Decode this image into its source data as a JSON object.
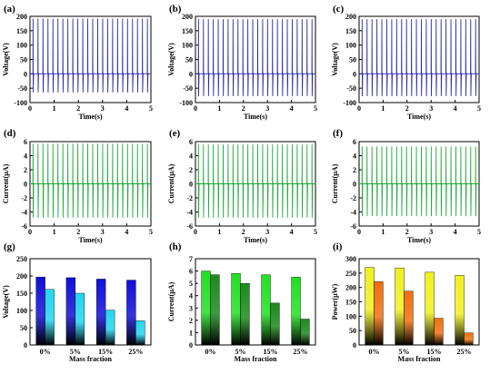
{
  "figure": {
    "panels": [
      "(a)",
      "(b)",
      "(c)",
      "(d)",
      "(e)",
      "(f)",
      "(g)",
      "(h)",
      "(i)"
    ]
  },
  "colors": {
    "voltage_trace": "#2a2aa8",
    "current_trace": "#1fa83a",
    "voltage_bar_a": "#1010d8",
    "voltage_bar_b": "#22d6ee",
    "current_bar_a": "#22e022",
    "current_bar_b": "#1c8a1c",
    "power_bar_a": "#f0f020",
    "power_bar_b": "#f07010"
  },
  "chart_data": [
    {
      "id": "a",
      "type": "line",
      "label": "(a)",
      "xlabel": "Time(s)",
      "ylabel": "Voltage(V)",
      "xlim": [
        0,
        5
      ],
      "ylim": [
        -100,
        200
      ],
      "xticks": [
        0,
        1,
        2,
        3,
        4,
        5
      ],
      "yticks": [
        -100,
        -50,
        0,
        50,
        100,
        150,
        200
      ],
      "signal": {
        "pulses": 24,
        "t_start": 0.12,
        "t_end": 4.85,
        "peak": 192,
        "trough": -65,
        "baseline": 0
      }
    },
    {
      "id": "b",
      "type": "line",
      "label": "(b)",
      "xlabel": "Time(s)",
      "ylabel": "Voltage(V)",
      "xlim": [
        0,
        5
      ],
      "ylim": [
        -100,
        200
      ],
      "xticks": [
        0,
        1,
        2,
        3,
        4,
        5
      ],
      "yticks": [
        -100,
        -50,
        0,
        50,
        100,
        150,
        200
      ],
      "signal": {
        "pulses": 24,
        "t_start": 0.12,
        "t_end": 4.85,
        "peak": 190,
        "trough": -78,
        "baseline": 0
      }
    },
    {
      "id": "c",
      "type": "line",
      "label": "(c)",
      "xlabel": "Time(s)",
      "ylabel": "Voltage(V)",
      "xlim": [
        0,
        5
      ],
      "ylim": [
        -100,
        200
      ],
      "xticks": [
        0,
        1,
        2,
        3,
        4,
        5
      ],
      "yticks": [
        -100,
        -50,
        0,
        50,
        100,
        150,
        200
      ],
      "signal": {
        "pulses": 24,
        "t_start": 0.12,
        "t_end": 4.85,
        "peak": 190,
        "trough": -78,
        "baseline": 0
      }
    },
    {
      "id": "d",
      "type": "line",
      "label": "(d)",
      "xlabel": "Time(s)",
      "ylabel": "Current(μA)",
      "xlim": [
        0,
        5
      ],
      "ylim": [
        -6,
        6
      ],
      "xticks": [
        0,
        1,
        2,
        3,
        4,
        5
      ],
      "yticks": [
        -6,
        -4,
        -2,
        0,
        2,
        4,
        6
      ],
      "signal": {
        "pulses": 24,
        "t_start": 0.12,
        "t_end": 4.85,
        "peak": 5.7,
        "trough": -4.8,
        "baseline": 0
      }
    },
    {
      "id": "e",
      "type": "line",
      "label": "(e)",
      "xlabel": "Time(s)",
      "ylabel": "Current(μA)",
      "xlim": [
        0,
        5
      ],
      "ylim": [
        -6,
        6
      ],
      "xticks": [
        0,
        1,
        2,
        3,
        4,
        5
      ],
      "yticks": [
        -6,
        -4,
        -2,
        0,
        2,
        4,
        6
      ],
      "signal": {
        "pulses": 24,
        "t_start": 0.12,
        "t_end": 4.85,
        "peak": 5.6,
        "trough": -4.8,
        "baseline": 0
      }
    },
    {
      "id": "f",
      "type": "line",
      "label": "(f)",
      "xlabel": "Time(s)",
      "ylabel": "Current(μA)",
      "xlim": [
        0,
        5
      ],
      "ylim": [
        -6,
        6
      ],
      "xticks": [
        0,
        1,
        2,
        3,
        4,
        5
      ],
      "yticks": [
        -6,
        -4,
        -2,
        0,
        2,
        4,
        6
      ],
      "signal": {
        "pulses": 24,
        "t_start": 0.12,
        "t_end": 4.85,
        "peak": 5.3,
        "trough": -4.6,
        "baseline": 0
      }
    },
    {
      "id": "g",
      "type": "bar",
      "label": "(g)",
      "xlabel": "Mass fraction",
      "ylabel": "Voltage(V)",
      "categories": [
        "0%",
        "5%",
        "15%",
        "25%"
      ],
      "ylim": [
        0,
        250
      ],
      "yticks": [
        0,
        50,
        100,
        150,
        200,
        250
      ],
      "series": [
        {
          "values": [
            197,
            195,
            191,
            188
          ]
        },
        {
          "values": [
            161,
            150,
            101,
            70
          ]
        }
      ]
    },
    {
      "id": "h",
      "type": "bar",
      "label": "(h)",
      "xlabel": "Mass fraction",
      "ylabel": "Current(μA)",
      "categories": [
        "0%",
        "5%",
        "15%",
        "25%"
      ],
      "ylim": [
        0,
        7
      ],
      "yticks": [
        0,
        1,
        2,
        3,
        4,
        5,
        6,
        7
      ],
      "series": [
        {
          "values": [
            6.0,
            5.8,
            5.7,
            5.5
          ]
        },
        {
          "values": [
            5.7,
            5.0,
            3.4,
            2.1
          ]
        }
      ]
    },
    {
      "id": "i",
      "type": "bar",
      "label": "(i)",
      "xlabel": "Mass fraction",
      "ylabel": "Power(μW)",
      "categories": [
        "0%",
        "5%",
        "15%",
        "25%"
      ],
      "ylim": [
        0,
        300
      ],
      "yticks": [
        0,
        50,
        100,
        150,
        200,
        250,
        300
      ],
      "series": [
        {
          "values": [
            270,
            268,
            253,
            242
          ]
        },
        {
          "values": [
            220,
            187,
            93,
            42
          ]
        }
      ]
    }
  ]
}
